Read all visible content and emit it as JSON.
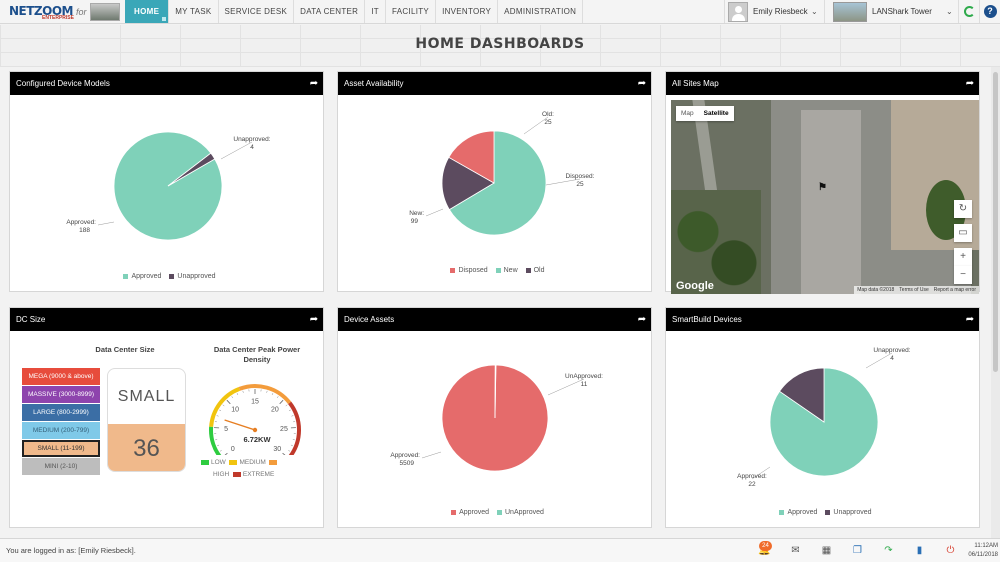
{
  "nav": {
    "logo": "NETZOOM",
    "logo_sub": "ENTERPRISE",
    "for_label": "for",
    "items": [
      "HOME",
      "MY TASK",
      "SERVICE DESK",
      "DATA CENTER",
      "IT",
      "FACILITY",
      "INVENTORY",
      "ADMINISTRATION"
    ],
    "active": "HOME",
    "user_name": "Emily Riesbeck",
    "site_name": "LANShark Tower",
    "help_label": "?"
  },
  "page_title": "HOME DASHBOARDS",
  "panels": {
    "configured_device_models": {
      "title": "Configured Device Models",
      "legend": [
        "Approved",
        "Unapproved"
      ]
    },
    "asset_availability": {
      "title": "Asset Availability",
      "legend": [
        "Disposed",
        "New",
        "Old"
      ]
    },
    "all_sites_map": {
      "title": "All Sites Map",
      "map_tab": "Map",
      "satellite_tab": "Satellite",
      "google": "Google",
      "map_data": "Map data ©2018",
      "terms": "Terms of Use",
      "report": "Report a map error"
    },
    "dc_size": {
      "title": "DC Size",
      "size_title": "Data Center Size",
      "power_title": "Data Center Peak Power Density",
      "sizes": [
        {
          "label": "MEGA (9000 & above)",
          "color": "#e74c3c"
        },
        {
          "label": "MASSIVE (3000-8999)",
          "color": "#8e44ad"
        },
        {
          "label": "LARGE (800-2999)",
          "color": "#3b6ea5"
        },
        {
          "label": "MEDIUM (200-799)",
          "color": "#7fc9e8"
        },
        {
          "label": "SMALL (11-199)",
          "color": "#f0b98b"
        },
        {
          "label": "MINI (2-10)",
          "color": "#bdbdbd"
        }
      ],
      "selected_size": "SMALL",
      "count": "36",
      "gauge": {
        "value": 6.72,
        "min": 0,
        "max": 30,
        "readout": "6.72KW",
        "ticks": [
          "0",
          "5",
          "10",
          "15",
          "20",
          "25",
          "30"
        ],
        "legend": [
          {
            "label": "LOW",
            "color": "#2ecc40"
          },
          {
            "label": "MEDIUM",
            "color": "#f1c40f"
          },
          {
            "label": "HIGH",
            "color": "#f39c3c"
          },
          {
            "label": "EXTREME",
            "color": "#c0392b"
          }
        ]
      }
    },
    "device_assets": {
      "title": "Device Assets",
      "legend": [
        "Approved",
        "UnApproved"
      ]
    },
    "smartbuild_devices": {
      "title": "SmartBuild Devices",
      "legend": [
        "Approved",
        "Unapproved"
      ]
    }
  },
  "chart_data": [
    {
      "type": "pie",
      "title": "Configured Device Models",
      "categories": [
        "Approved",
        "Unapproved"
      ],
      "values": [
        188,
        4
      ],
      "colors": [
        "#7fd1b9",
        "#5c4b5f"
      ],
      "legend": "bottom"
    },
    {
      "type": "pie",
      "title": "Asset Availability",
      "categories": [
        "New",
        "Old",
        "Disposed"
      ],
      "values": [
        99,
        25,
        25
      ],
      "colors": [
        "#7fd1b9",
        "#5c4b5f",
        "#e56b6b"
      ],
      "legend": "bottom"
    },
    {
      "type": "pie",
      "title": "Device Assets",
      "categories": [
        "Approved",
        "UnApproved"
      ],
      "values": [
        5509,
        11
      ],
      "colors": [
        "#e56b6b",
        "#7fd1b9"
      ],
      "legend": "bottom"
    },
    {
      "type": "pie",
      "title": "SmartBuild Devices",
      "categories": [
        "Approved",
        "Unapproved"
      ],
      "values": [
        22,
        4
      ],
      "colors": [
        "#7fd1b9",
        "#5c4b5f"
      ],
      "legend": "bottom"
    }
  ],
  "status": {
    "logged_in": "You are logged in as: [Emily Riesbeck].",
    "notification_count": "24",
    "time": "11:12AM",
    "date": "06/11/2018"
  }
}
